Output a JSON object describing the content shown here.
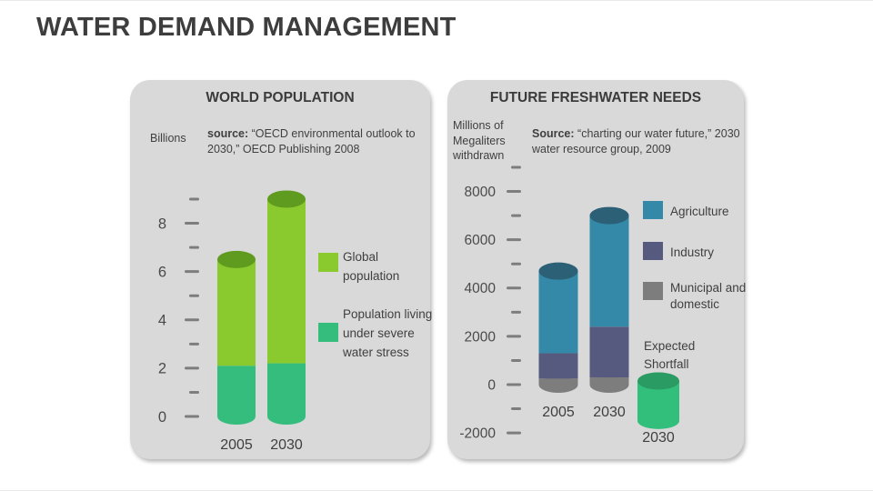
{
  "title": "WATER DEMAND MANAGEMENT",
  "colors": {
    "panel_bg": "#d9d9d9",
    "title_text": "#3d3d3d",
    "body_text": "#3f3f3f",
    "tick": "#7d7d7d",
    "axis_text": "#4a4a4a"
  },
  "chart_data": [
    {
      "type": "bar",
      "variant": "stacked-cylinder",
      "panel_title": "WORLD POPULATION",
      "unit_label": "Billions",
      "source_label": "source:",
      "source_text": "“OECD environmental outlook to 2030,” OECD Publishing 2008",
      "categories": [
        "2005",
        "2030"
      ],
      "series": [
        {
          "name": "Global population",
          "color": "#8bca2f",
          "values": [
            6.5,
            9.0
          ]
        },
        {
          "name": "Population living under severe water stress",
          "color": "#35bd7e",
          "values": [
            2.1,
            2.2
          ]
        }
      ],
      "ylabel": "Billions",
      "ylim": [
        0,
        9
      ],
      "tick_step": 1,
      "labeled_ticks": [
        0,
        2,
        4,
        6,
        8
      ],
      "legend_position": "right",
      "grid": false,
      "legend": [
        {
          "label": "Global population",
          "color": "#8bca2f"
        },
        {
          "label": "Population living under severe water stress",
          "color": "#35bd7e"
        }
      ],
      "bars": [
        {
          "category": "2005",
          "lid_color": "#5f9b1e",
          "segments": [
            {
              "from": 0,
              "to": 2.1,
              "color": "#35bd7e"
            },
            {
              "to": 6.5,
              "color": "#8bca2f"
            }
          ]
        },
        {
          "category": "2030",
          "lid_color": "#5f9b1e",
          "segments": [
            {
              "from": 0,
              "to": 2.2,
              "color": "#35bd7e"
            },
            {
              "to": 9.0,
              "color": "#8bca2f"
            }
          ]
        }
      ]
    },
    {
      "type": "bar",
      "variant": "stacked-cylinder",
      "panel_title": "FUTURE FRESHWATER NEEDS",
      "unit_label": "Millions of Megaliters withdrawn",
      "source_label": "Source:",
      "source_text": "“charting our water future,” 2030 water resource group, 2009",
      "categories": [
        "2005",
        "2030",
        "2030"
      ],
      "series": [
        {
          "name": "Agriculture",
          "color": "#3589a8",
          "values": [
            3400,
            4600,
            null
          ]
        },
        {
          "name": "Industry",
          "color": "#575a7f",
          "values": [
            1050,
            2100,
            null
          ]
        },
        {
          "name": "Municipal and domestic",
          "color": "#7d7d7d",
          "values": [
            250,
            300,
            null
          ]
        },
        {
          "name": "Expected Shortfall",
          "color": "#32bf7c",
          "values": [
            null,
            null,
            -1500
          ]
        }
      ],
      "ylabel": "Millions of Megaliters withdrawn",
      "ylim": [
        -2000,
        9000
      ],
      "tick_step": 1000,
      "labeled_ticks": [
        -2000,
        0,
        2000,
        4000,
        6000,
        8000
      ],
      "legend_position": "right",
      "grid": false,
      "annotation": "Expected Shortfall",
      "legend": [
        {
          "label": "Agriculture",
          "color": "#3589a8"
        },
        {
          "label": "Industry",
          "color": "#575a7f"
        },
        {
          "label": "Municipal and domestic",
          "color": "#7d7d7d"
        }
      ],
      "bars": [
        {
          "category": "2005",
          "lid_color": "#2b6076",
          "segments": [
            {
              "from": 0,
              "to": 250,
              "color": "#7d7d7d"
            },
            {
              "to": 1300,
              "color": "#575a7f"
            },
            {
              "to": 4700,
              "color": "#3589a8"
            }
          ]
        },
        {
          "category": "2030",
          "lid_color": "#2b6076",
          "segments": [
            {
              "from": 0,
              "to": 300,
              "color": "#7d7d7d"
            },
            {
              "to": 2400,
              "color": "#575a7f"
            },
            {
              "to": 7000,
              "color": "#3589a8"
            }
          ]
        },
        {
          "category": "2030",
          "lid_color": "#2a9b62",
          "segments": [
            {
              "from": -1500,
              "to": 150,
              "color": "#32bf7c"
            }
          ]
        }
      ]
    }
  ]
}
